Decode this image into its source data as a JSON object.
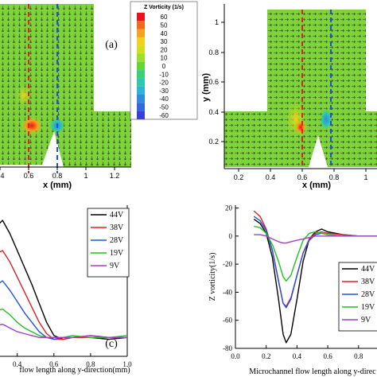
{
  "panels": {
    "a": {
      "label": "(a)",
      "xlabel": "x (mm)",
      "xticks": [
        "4",
        "0.6",
        "0.8",
        "1",
        "1.2"
      ],
      "colorbar": {
        "title": "Z Vorticity (1/s)",
        "levels": [
          "60",
          "50",
          "40",
          "30",
          "20",
          "10",
          "0",
          "-10",
          "-20",
          "-30",
          "-40",
          "-50",
          "-60"
        ],
        "colors": [
          "#e8141b",
          "#f06a1a",
          "#f7a21e",
          "#f2d21c",
          "#cfe01e",
          "#9be02a",
          "#63d53a",
          "#3ad07a",
          "#30c7b0",
          "#2bb4d6",
          "#2f8be0",
          "#3565e0",
          "#3a3fd8"
        ]
      }
    },
    "b": {
      "xlabel": "x (mm)",
      "ylabel": "y (mm)",
      "xticks": [
        "0.2",
        "0.4",
        "0.6",
        "0.8",
        "1"
      ],
      "yticks": [
        "1",
        "0.8",
        "0.6",
        "0.4",
        "0.2"
      ]
    }
  },
  "chart_data": [
    {
      "type": "line",
      "panel_label": "(c)",
      "xlabel": "flow length along y-direction(mm)",
      "xticks": [
        "0.4",
        "0.6",
        "0.8",
        "1.0"
      ],
      "xlim": [
        0.28,
        1.0
      ],
      "ylim": [
        -10,
        70
      ],
      "series": [
        {
          "name": "44V",
          "color": "#000000",
          "x": [
            0.28,
            0.32,
            0.36,
            0.4,
            0.44,
            0.48,
            0.52,
            0.56,
            0.6,
            0.65,
            0.7,
            0.8,
            0.9,
            1.0
          ],
          "y": [
            58,
            62,
            55,
            46,
            37,
            28,
            18,
            8,
            1,
            -1,
            0,
            0,
            -1,
            0
          ]
        },
        {
          "name": "38V",
          "color": "#e02020",
          "x": [
            0.28,
            0.32,
            0.36,
            0.4,
            0.44,
            0.48,
            0.52,
            0.56,
            0.6,
            0.65,
            0.7,
            0.8,
            0.9,
            1.0
          ],
          "y": [
            44,
            46,
            40,
            32,
            24,
            16,
            8,
            2,
            -1,
            -1,
            0,
            0,
            0,
            0
          ]
        },
        {
          "name": "28V",
          "color": "#2050e0",
          "x": [
            0.28,
            0.32,
            0.36,
            0.4,
            0.44,
            0.48,
            0.52,
            0.56,
            0.6,
            0.65,
            0.7,
            0.8,
            0.9,
            1.0
          ],
          "y": [
            27,
            30,
            25,
            19,
            13,
            8,
            3,
            0,
            -1,
            0,
            0,
            1,
            0,
            0
          ]
        },
        {
          "name": "19V",
          "color": "#20c020",
          "x": [
            0.28,
            0.32,
            0.36,
            0.4,
            0.44,
            0.48,
            0.52,
            0.56,
            0.6,
            0.65,
            0.7,
            0.8,
            0.9,
            1.0
          ],
          "y": [
            14,
            15,
            12,
            8,
            5,
            3,
            1,
            0,
            0,
            0,
            1,
            0,
            0,
            1
          ]
        },
        {
          "name": "9V",
          "color": "#a040c0",
          "x": [
            0.28,
            0.32,
            0.36,
            0.4,
            0.44,
            0.48,
            0.52,
            0.56,
            0.6,
            0.65,
            0.7,
            0.8,
            0.9,
            1.0
          ],
          "y": [
            6,
            7,
            5,
            3,
            2,
            1,
            0,
            0,
            0,
            0,
            0,
            1,
            0,
            0
          ]
        }
      ]
    },
    {
      "type": "line",
      "xlabel": "Microchannel flow length along y-direc",
      "ylabel": "Z vorticity(1/s)",
      "xticks": [
        "0.0",
        "0.2",
        "0.4",
        "0.6",
        "0.8"
      ],
      "yticks": [
        "20",
        "0",
        "-20",
        "-40",
        "-60",
        "-80"
      ],
      "xlim": [
        0.0,
        0.92
      ],
      "ylim": [
        -80,
        22
      ],
      "series": [
        {
          "name": "44V",
          "color": "#000000",
          "x": [
            0.12,
            0.16,
            0.2,
            0.24,
            0.28,
            0.31,
            0.33,
            0.36,
            0.4,
            0.44,
            0.48,
            0.52,
            0.56,
            0.6,
            0.7,
            0.8,
            0.92
          ],
          "y": [
            12,
            9,
            2,
            -15,
            -45,
            -70,
            -76,
            -70,
            -45,
            -18,
            -2,
            3,
            5,
            3,
            1,
            0,
            0
          ]
        },
        {
          "name": "38V",
          "color": "#e02020",
          "x": [
            0.12,
            0.16,
            0.2,
            0.24,
            0.28,
            0.31,
            0.33,
            0.36,
            0.4,
            0.44,
            0.48,
            0.52,
            0.56,
            0.6,
            0.7,
            0.8,
            0.92
          ],
          "y": [
            18,
            14,
            5,
            -10,
            -32,
            -48,
            -50,
            -44,
            -28,
            -12,
            -2,
            2,
            3,
            2,
            1,
            0,
            0
          ]
        },
        {
          "name": "28V",
          "color": "#2050e0",
          "x": [
            0.12,
            0.16,
            0.2,
            0.24,
            0.28,
            0.31,
            0.33,
            0.36,
            0.4,
            0.44,
            0.48,
            0.52,
            0.56,
            0.6,
            0.7,
            0.8,
            0.92
          ],
          "y": [
            14,
            11,
            4,
            -10,
            -32,
            -48,
            -51,
            -45,
            -28,
            -12,
            -3,
            1,
            2,
            1,
            0,
            0,
            0
          ]
        },
        {
          "name": "19V",
          "color": "#20c020",
          "x": [
            0.12,
            0.16,
            0.2,
            0.24,
            0.28,
            0.31,
            0.33,
            0.36,
            0.4,
            0.44,
            0.48,
            0.52,
            0.56,
            0.6,
            0.7,
            0.8,
            0.92
          ],
          "y": [
            7,
            6,
            2,
            -6,
            -18,
            -29,
            -32,
            -28,
            -15,
            -3,
            2,
            3,
            2,
            1,
            0,
            0,
            0
          ]
        },
        {
          "name": "9V",
          "color": "#a040c0",
          "x": [
            0.12,
            0.16,
            0.2,
            0.24,
            0.28,
            0.31,
            0.33,
            0.36,
            0.4,
            0.44,
            0.48,
            0.52,
            0.56,
            0.6,
            0.7,
            0.8,
            0.92
          ],
          "y": [
            1,
            1,
            0,
            -2,
            -4,
            -5,
            -5,
            -4,
            -3,
            -2,
            -1,
            0,
            0,
            0,
            0,
            0,
            0
          ]
        }
      ]
    }
  ]
}
